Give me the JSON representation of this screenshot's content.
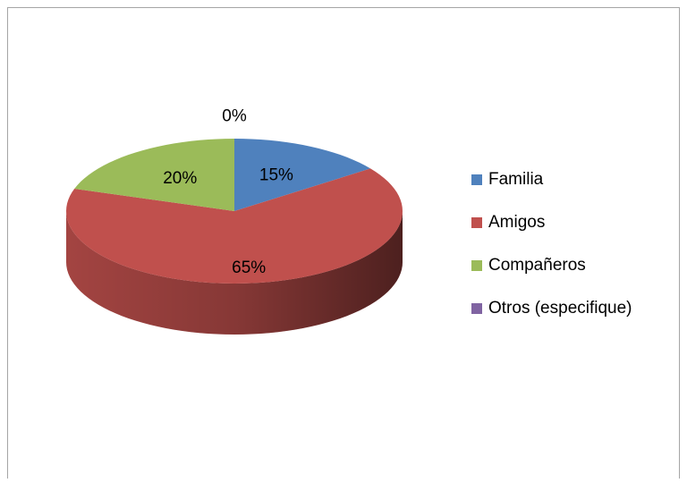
{
  "chart_data": {
    "type": "pie",
    "categories": [
      "Familia",
      "Amigos",
      "Compañeros",
      "Otros (especifique)"
    ],
    "values": [
      15,
      65,
      20,
      0
    ],
    "value_labels": [
      "15%",
      "65%",
      "20%",
      "0%"
    ],
    "colors": [
      "#4f81bd",
      "#c0504d",
      "#9bbb59",
      "#8064a2"
    ],
    "legend": "right"
  }
}
